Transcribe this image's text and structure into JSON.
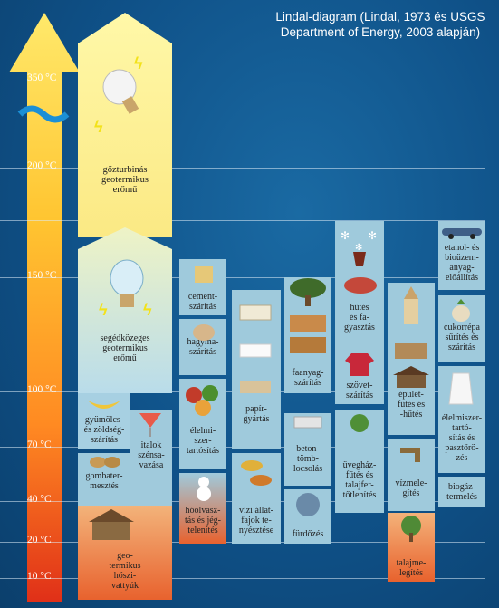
{
  "title": "Lindal-diagram (Lindal, 1973 és USGS Department of Energy, 2003 alapján)",
  "temperatures": [
    "350 °C",
    "200 °C",
    "150 °C",
    "100 °C",
    "70 °C",
    "40 °C",
    "20 °C",
    "10 °C"
  ],
  "blocks": {
    "steam_turbine": "gőzturbinás\ngeotermikus\nerőmű",
    "binary_plant": "segédközeges\ngeotermikus\nerőmű",
    "fruit_drying": "gyümölcs-\nés zöldség-\nszárítás",
    "drinks": "italok\nszénsa-\nvazása",
    "mushroom": "gombater-\nmesztés",
    "heat_pump": "geo-\ntermikus\nhőszi-\nvattyúk",
    "cement": "cement-\nszárítás",
    "onion": "hagyma-\nszárítás",
    "food_preservation": "élelmi-\nszer-\ntartósítás",
    "de_icing": "hóolvasz-\ntás és jég-\ntelenítés",
    "paper": "papír-\ngyártás",
    "fish_farming": "vízi állat-\nfajok te-\nnyésztése",
    "timber": "faanyag-\nszárítás",
    "concrete": "beton-\ntömb-\nlocsolás",
    "bathing": "fürdőzés",
    "refrigeration": "hűtés\nés fa-\ngyasztás",
    "textile": "szövet-\nszárítás",
    "greenhouse": "üvegház-\nfűtés és\ntalajfer-\ntőtlenítés",
    "building_heating": "épület-\nfűtés és\n-hűtés",
    "water_heating": "vízmele-\ngítés",
    "soil_heating": "talajme-\nlegítés",
    "ethanol": "etanol- és\nbioüzem-\nanyag-\nelőállítás",
    "sugar_beet": "cukorrépa\nsűrítés és\nszárítás",
    "food_sterilization": "élelmiszer-\ntartó-\nsítás és\npasztőrö-\nzés",
    "biogas": "biogáz-\ntermelés"
  }
}
